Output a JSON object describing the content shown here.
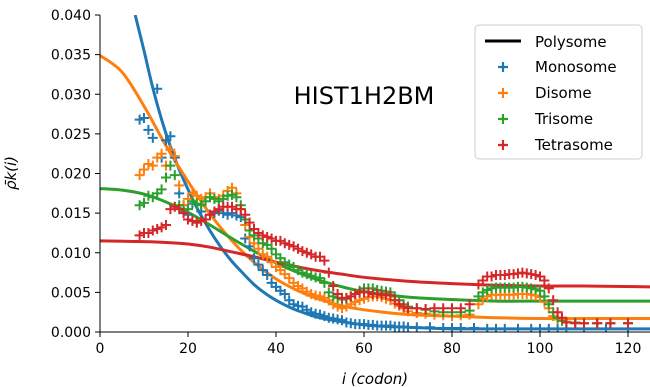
{
  "chart_data": {
    "type": "scatter",
    "title": "HIST1H2BM",
    "xlabel": "i (codon)",
    "ylabel": "ρ̄k(i)",
    "xlim": [
      0,
      125
    ],
    "ylim": [
      0,
      0.04
    ],
    "xticks": [
      0,
      20,
      40,
      60,
      80,
      100,
      120
    ],
    "xtick_labels": [
      "0",
      "20",
      "40",
      "60",
      "80",
      "100",
      "120"
    ],
    "yticks": [
      0,
      0.005,
      0.01,
      0.015,
      0.02,
      0.025,
      0.03,
      0.035,
      0.04
    ],
    "ytick_labels": [
      "0.000",
      "0.005",
      "0.010",
      "0.015",
      "0.020",
      "0.025",
      "0.030",
      "0.035",
      "0.040"
    ],
    "grid": false,
    "legend_position": "top-right",
    "legend": {
      "line_label": "Polysome",
      "line_color": "#000000",
      "entries": [
        {
          "label": "Monosome",
          "color": "#1f77b4"
        },
        {
          "label": "Disome",
          "color": "#ff7f0e"
        },
        {
          "label": "Trisome",
          "color": "#2ca02c"
        },
        {
          "label": "Tetrasome",
          "color": "#d62728"
        }
      ]
    },
    "fit_curves": [
      {
        "color": "#1f77b4",
        "x": [
          8,
          10,
          12,
          14,
          16,
          18,
          20,
          22,
          24,
          26,
          28,
          30,
          32,
          35,
          38,
          41,
          44,
          47,
          50,
          55,
          60,
          65,
          70,
          80,
          90,
          100,
          110,
          125
        ],
        "y": [
          0.04,
          0.0355,
          0.0308,
          0.0268,
          0.0234,
          0.0205,
          0.018,
          0.0157,
          0.0137,
          0.0119,
          0.0103,
          0.0089,
          0.0077,
          0.006,
          0.0047,
          0.0037,
          0.0029,
          0.0023,
          0.0018,
          0.0013,
          0.0009,
          0.0007,
          0.0006,
          0.0004,
          0.0004,
          0.0004,
          0.0004,
          0.0004
        ]
      },
      {
        "color": "#ff7f0e",
        "x": [
          0,
          5,
          10,
          15,
          20,
          25,
          30,
          35,
          40,
          45,
          50,
          55,
          60,
          70,
          80,
          90,
          100,
          110,
          125
        ],
        "y": [
          0.0349,
          0.0328,
          0.0285,
          0.0235,
          0.019,
          0.0149,
          0.0115,
          0.0088,
          0.0067,
          0.0052,
          0.0041,
          0.0033,
          0.0028,
          0.0022,
          0.002,
          0.0018,
          0.0017,
          0.0017,
          0.0017
        ]
      },
      {
        "color": "#2ca02c",
        "x": [
          0,
          5,
          10,
          15,
          20,
          25,
          30,
          35,
          40,
          45,
          50,
          55,
          60,
          70,
          80,
          90,
          100,
          110,
          125
        ],
        "y": [
          0.0181,
          0.0179,
          0.0174,
          0.0164,
          0.0151,
          0.0135,
          0.0118,
          0.0102,
          0.0087,
          0.0075,
          0.0065,
          0.0057,
          0.0051,
          0.0044,
          0.0041,
          0.0039,
          0.0039,
          0.0039,
          0.0039
        ]
      },
      {
        "color": "#d62728",
        "x": [
          0,
          10,
          15,
          20,
          25,
          30,
          35,
          40,
          45,
          50,
          55,
          60,
          70,
          80,
          90,
          100,
          110,
          125
        ],
        "y": [
          0.0115,
          0.0114,
          0.0113,
          0.0111,
          0.0107,
          0.0101,
          0.0095,
          0.0088,
          0.0082,
          0.0077,
          0.0073,
          0.0069,
          0.0064,
          0.0061,
          0.0059,
          0.0058,
          0.0058,
          0.0057
        ]
      }
    ],
    "series": [
      {
        "name": "Monosome",
        "color": "#1f77b4",
        "x": [
          9,
          10,
          11,
          12,
          13,
          14,
          15,
          16,
          17,
          18,
          19,
          20,
          21,
          22,
          23,
          24,
          25,
          26,
          27,
          28,
          29,
          30,
          31,
          32,
          33,
          34,
          35,
          36,
          37,
          38,
          39,
          40,
          41,
          42,
          43,
          44,
          45,
          46,
          47,
          48,
          49,
          50,
          51,
          52,
          53,
          54,
          55,
          56,
          57,
          58,
          59,
          60,
          61,
          62,
          63,
          64,
          65,
          66,
          67,
          68,
          69,
          70,
          72,
          75,
          78,
          80,
          82,
          85,
          88,
          90,
          92,
          95,
          98,
          100,
          102,
          104,
          106,
          110,
          115,
          120
        ],
        "y": [
          0.0268,
          0.027,
          0.0255,
          0.0245,
          0.0307,
          0.022,
          0.0242,
          0.0247,
          0.022,
          0.0175,
          0.016,
          0.0148,
          0.0162,
          0.0138,
          0.0152,
          0.0142,
          0.0148,
          0.015,
          0.0153,
          0.015,
          0.0148,
          0.015,
          0.0147,
          0.0145,
          0.0118,
          0.0108,
          0.0093,
          0.0085,
          0.0078,
          0.0072,
          0.0062,
          0.0057,
          0.0052,
          0.0048,
          0.004,
          0.0035,
          0.0033,
          0.0032,
          0.0028,
          0.0025,
          0.0023,
          0.0022,
          0.002,
          0.0018,
          0.0017,
          0.0016,
          0.0015,
          0.0012,
          0.0011,
          0.001,
          0.001,
          0.001,
          0.0009,
          0.0009,
          0.0008,
          0.0008,
          0.0008,
          0.0008,
          0.0007,
          0.0007,
          0.0007,
          0.0006,
          0.0006,
          0.0006,
          0.0005,
          0.0005,
          0.0005,
          0.0005,
          0.0004,
          0.0004,
          0.0004,
          0.0004,
          0.0004,
          0.0004,
          0.0004,
          0.0004,
          0.0004,
          0.0004,
          0.0004,
          0.0004
        ]
      },
      {
        "name": "Disome",
        "color": "#ff7f0e",
        "x": [
          9,
          10,
          11,
          12,
          13,
          14,
          15,
          16,
          17,
          18,
          19,
          20,
          21,
          22,
          23,
          24,
          25,
          26,
          27,
          28,
          29,
          30,
          31,
          32,
          33,
          34,
          35,
          36,
          37,
          38,
          39,
          40,
          41,
          42,
          43,
          44,
          45,
          46,
          47,
          48,
          49,
          50,
          51,
          52,
          53,
          54,
          55,
          56,
          57,
          58,
          59,
          60,
          61,
          62,
          63,
          64,
          65,
          66,
          67,
          68,
          69,
          70,
          72,
          74,
          76,
          78,
          80,
          82,
          84,
          86,
          87,
          88,
          89,
          90,
          91,
          92,
          93,
          94,
          95,
          96,
          97,
          98,
          99,
          100,
          101,
          102,
          103,
          104,
          105,
          106,
          108,
          110,
          113,
          116,
          120
        ],
        "y": [
          0.0198,
          0.0205,
          0.0212,
          0.021,
          0.022,
          0.0225,
          0.021,
          0.023,
          0.0222,
          0.0185,
          0.016,
          0.0168,
          0.0175,
          0.0172,
          0.0168,
          0.017,
          0.0175,
          0.017,
          0.0168,
          0.0172,
          0.0178,
          0.0182,
          0.0175,
          0.0155,
          0.0135,
          0.012,
          0.0112,
          0.0105,
          0.0098,
          0.0095,
          0.0088,
          0.0082,
          0.0078,
          0.0073,
          0.0068,
          0.0062,
          0.0058,
          0.0055,
          0.0051,
          0.0048,
          0.0046,
          0.0045,
          0.0043,
          0.004,
          0.0035,
          0.0032,
          0.003,
          0.0032,
          0.0035,
          0.0038,
          0.004,
          0.0042,
          0.0044,
          0.0045,
          0.0045,
          0.0044,
          0.0042,
          0.004,
          0.0036,
          0.0033,
          0.003,
          0.0026,
          0.0024,
          0.0023,
          0.0022,
          0.0021,
          0.002,
          0.0021,
          0.0022,
          0.0035,
          0.0042,
          0.0045,
          0.0047,
          0.0047,
          0.0047,
          0.0047,
          0.0047,
          0.0047,
          0.0048,
          0.0048,
          0.0048,
          0.0047,
          0.0046,
          0.0044,
          0.0038,
          0.003,
          0.002,
          0.0016,
          0.0015,
          0.0013,
          0.0012,
          0.0011,
          0.0011,
          0.0011,
          0.0011
        ]
      },
      {
        "name": "Trisome",
        "color": "#2ca02c",
        "x": [
          9,
          10,
          11,
          12,
          13,
          14,
          15,
          16,
          17,
          18,
          19,
          20,
          21,
          22,
          23,
          24,
          25,
          26,
          27,
          28,
          29,
          30,
          31,
          32,
          33,
          34,
          35,
          36,
          37,
          38,
          39,
          40,
          41,
          42,
          43,
          44,
          45,
          46,
          47,
          48,
          49,
          50,
          51,
          52,
          53,
          54,
          55,
          56,
          57,
          58,
          59,
          60,
          61,
          62,
          63,
          64,
          65,
          66,
          67,
          68,
          69,
          70,
          72,
          74,
          76,
          78,
          80,
          82,
          84,
          86,
          87,
          88,
          89,
          90,
          91,
          92,
          93,
          94,
          95,
          96,
          97,
          98,
          99,
          100,
          101,
          102,
          103,
          104,
          105,
          106,
          108,
          110,
          113,
          116,
          120
        ],
        "y": [
          0.016,
          0.0163,
          0.0172,
          0.017,
          0.0175,
          0.018,
          0.0195,
          0.021,
          0.0198,
          0.016,
          0.0152,
          0.0155,
          0.0165,
          0.0162,
          0.016,
          0.0165,
          0.017,
          0.0168,
          0.0165,
          0.0168,
          0.0172,
          0.0173,
          0.017,
          0.016,
          0.0142,
          0.0128,
          0.0122,
          0.0118,
          0.0112,
          0.011,
          0.0105,
          0.0098,
          0.0093,
          0.0088,
          0.0085,
          0.0082,
          0.0078,
          0.0075,
          0.0073,
          0.0071,
          0.0069,
          0.0068,
          0.0062,
          0.005,
          0.0045,
          0.0043,
          0.0041,
          0.0042,
          0.0045,
          0.0048,
          0.0052,
          0.0055,
          0.0055,
          0.0055,
          0.0053,
          0.0052,
          0.0051,
          0.005,
          0.0045,
          0.004,
          0.0035,
          0.0032,
          0.003,
          0.0028,
          0.0026,
          0.0025,
          0.0025,
          0.0025,
          0.0027,
          0.0045,
          0.005,
          0.0053,
          0.0055,
          0.0056,
          0.0056,
          0.0056,
          0.0056,
          0.0056,
          0.0057,
          0.0057,
          0.0056,
          0.0055,
          0.0054,
          0.0052,
          0.0045,
          0.0035,
          0.0025,
          0.0018,
          0.0014,
          0.0012,
          0.0012,
          0.0011,
          0.0011,
          0.0011,
          0.0011
        ]
      },
      {
        "name": "Tetrasome",
        "color": "#d62728",
        "x": [
          9,
          10,
          11,
          12,
          13,
          14,
          15,
          16,
          17,
          18,
          19,
          20,
          21,
          22,
          23,
          24,
          25,
          26,
          27,
          28,
          29,
          30,
          31,
          32,
          33,
          34,
          35,
          36,
          37,
          38,
          39,
          40,
          41,
          42,
          43,
          44,
          45,
          46,
          47,
          48,
          49,
          50,
          51,
          52,
          53,
          54,
          55,
          56,
          57,
          58,
          59,
          60,
          61,
          62,
          63,
          64,
          65,
          66,
          67,
          68,
          69,
          70,
          72,
          74,
          76,
          78,
          80,
          82,
          84,
          86,
          87,
          88,
          89,
          90,
          91,
          92,
          93,
          94,
          95,
          96,
          97,
          98,
          99,
          100,
          101,
          102,
          103,
          104,
          105,
          106,
          108,
          110,
          113,
          116,
          120
        ],
        "y": [
          0.0122,
          0.0125,
          0.0125,
          0.0128,
          0.013,
          0.0132,
          0.0135,
          0.0155,
          0.0158,
          0.0155,
          0.015,
          0.0142,
          0.014,
          0.0138,
          0.014,
          0.0142,
          0.0148,
          0.0152,
          0.0155,
          0.0158,
          0.0158,
          0.0158,
          0.0155,
          0.0155,
          0.0148,
          0.0138,
          0.013,
          0.0125,
          0.0122,
          0.012,
          0.0118,
          0.0115,
          0.0115,
          0.0112,
          0.011,
          0.0108,
          0.0105,
          0.0102,
          0.01,
          0.0098,
          0.0095,
          0.0095,
          0.009,
          0.0075,
          0.0058,
          0.0048,
          0.0043,
          0.0043,
          0.0045,
          0.0048,
          0.005,
          0.005,
          0.005,
          0.0048,
          0.0048,
          0.0047,
          0.0047,
          0.0046,
          0.004,
          0.0035,
          0.0032,
          0.003,
          0.003,
          0.0029,
          0.003,
          0.003,
          0.003,
          0.003,
          0.0035,
          0.006,
          0.0065,
          0.007,
          0.007,
          0.0072,
          0.0072,
          0.0072,
          0.0073,
          0.0073,
          0.0074,
          0.0075,
          0.0074,
          0.0073,
          0.0072,
          0.007,
          0.0065,
          0.0055,
          0.004,
          0.0025,
          0.0018,
          0.0012,
          0.0011,
          0.0011,
          0.0011,
          0.0011,
          0.0011
        ]
      }
    ]
  }
}
